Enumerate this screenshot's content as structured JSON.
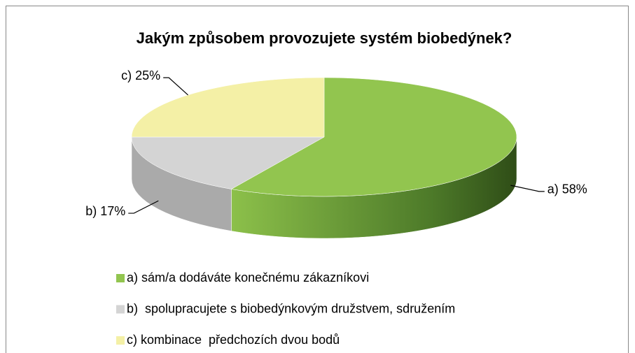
{
  "chart_data": {
    "type": "pie3d",
    "title": "Jakým způsobem provozujete systém biobedýnek?",
    "categories": [
      "a) sám/a dodáváte konečnému zákazníkovi",
      "b)  spolupracujete s biobedýnkovým družstvem, sdružením",
      "c) kombinace  předchozích dvou bodů"
    ],
    "values": [
      58,
      17,
      25
    ],
    "value_labels": [
      "a) 58%",
      "b) 17%",
      "c) 25%"
    ],
    "colors": [
      "#92c54f",
      "#d4d4d4",
      "#f4f0a6"
    ],
    "side_colors": [
      "#4f7a2a",
      "#aaaaaa",
      "#cfc97e"
    ],
    "legend": "bottom"
  }
}
